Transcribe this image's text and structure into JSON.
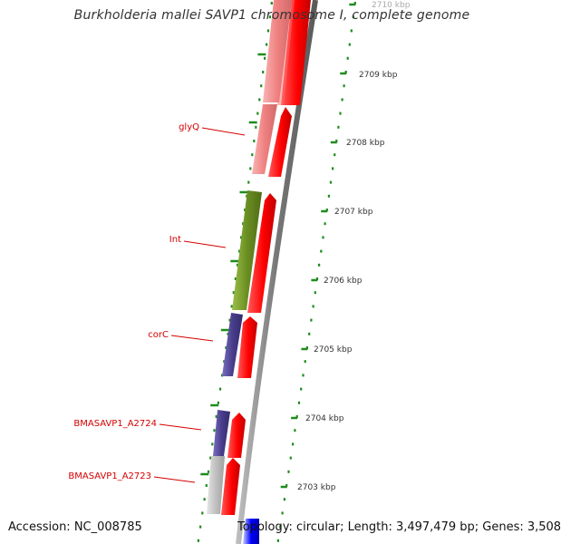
{
  "header": {
    "title": "Burkholderia mallei SAVP1 chromosome I, complete genome"
  },
  "footer": {
    "accession": "Accession: NC_008785",
    "topology": "Topology: circular; Length: 3,497,479 bp; Genes: 3,508"
  },
  "scale": {
    "ticks": [
      {
        "label": "2710 kbp",
        "faded": true
      },
      {
        "label": "2709 kbp"
      },
      {
        "label": "2708 kbp"
      },
      {
        "label": "2707 kbp"
      },
      {
        "label": "2706 kbp"
      },
      {
        "label": "2705 kbp"
      },
      {
        "label": "2704 kbp"
      },
      {
        "label": "2703 kbp"
      }
    ]
  },
  "genes": [
    {
      "name": "glyQ",
      "color": "#f08080"
    },
    {
      "name": "Int",
      "color": "#6b8e23"
    },
    {
      "name": "corC",
      "color": "#483d8b"
    },
    {
      "name": "BMASAVP1_A2724",
      "color": "#483d8b"
    },
    {
      "name": "BMASAVP1_A2723",
      "color": "#c0c0c0"
    }
  ],
  "colors": {
    "label": "#d40000",
    "tick": "#1e8c1e",
    "backbone": "#808080",
    "cds": "#ff0000",
    "blue_feature": "#0000ff"
  }
}
